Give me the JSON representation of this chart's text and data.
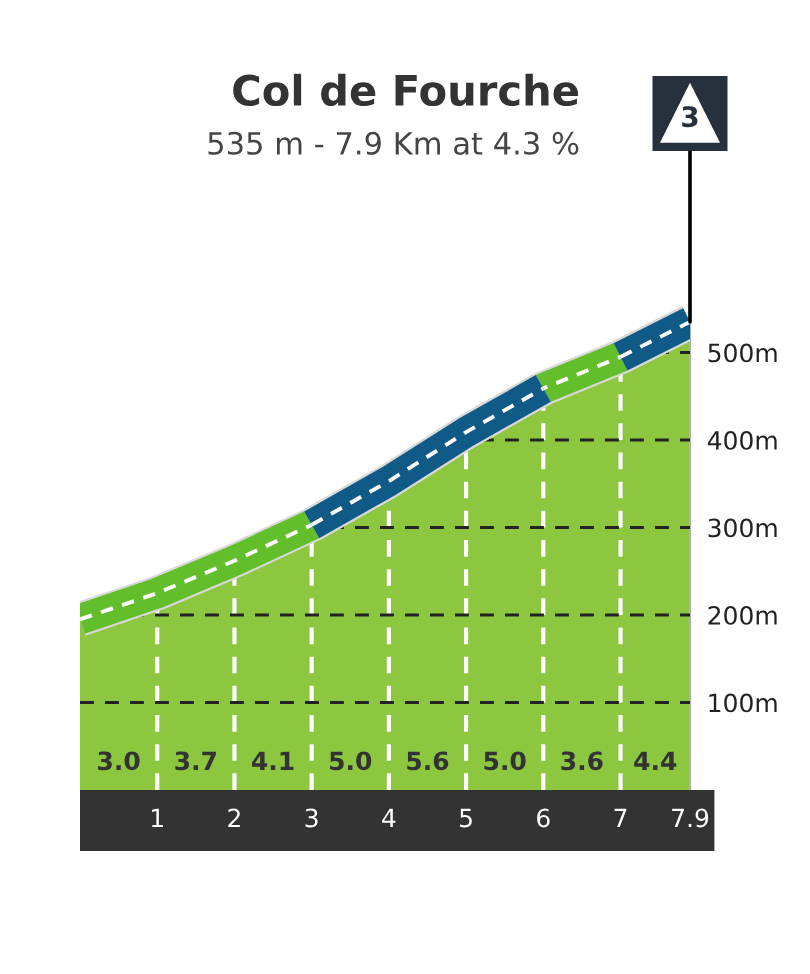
{
  "chart_data": {
    "type": "area",
    "title": "Col de Fourche",
    "subtitle": "535 m - 7.9 Km at 4.3 %",
    "x": [
      0,
      1,
      2,
      3,
      4,
      5,
      6,
      7,
      7.9
    ],
    "series": [
      {
        "type": "line",
        "color": "#0f5a86",
        "x": [
          3,
          4,
          5,
          6
        ],
        "values": [
          303,
          353,
          409,
          459
        ]
      },
      {
        "type": "line",
        "color": "#0f5a86",
        "x": [
          7,
          7.9
        ],
        "values": [
          495,
          535
        ]
      },
      {
        "color": "#8dc63f",
        "values": [
          195,
          225,
          262,
          303,
          353,
          409,
          459,
          495,
          535
        ]
      }
    ],
    "xlim": [
      0,
      7.9
    ],
    "xticks": [
      1,
      2,
      3,
      4,
      5,
      6,
      7,
      7.9
    ],
    "ylim": [
      0,
      560
    ],
    "yticks": [
      {
        "value": 100,
        "label": "100m"
      },
      {
        "value": 200,
        "label": "200m"
      },
      {
        "value": 300,
        "label": "300m"
      },
      {
        "value": 400,
        "label": "400m"
      },
      {
        "value": 500,
        "label": "500m"
      }
    ],
    "grid": true,
    "annotations": [
      "3.0",
      "3.7",
      "4.1",
      "5.0",
      "5.6",
      "5.0",
      "3.6",
      "4.4",
      {
        "text": "3",
        "x": 7.9,
        "y": 535
      }
    ]
  }
}
